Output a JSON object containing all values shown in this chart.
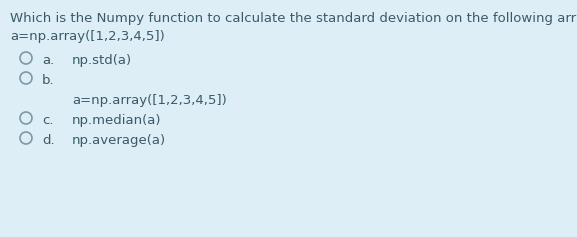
{
  "background_color": "#ddeef6",
  "title_line": "Which is the Numpy function to calculate the standard deviation on the following array:",
  "subtitle_line": "a=np.array([1,2,3,4,5])",
  "options": [
    {
      "label": "a.",
      "text": "np.std(a)",
      "subtext": null
    },
    {
      "label": "b.",
      "text": "",
      "subtext": "a=np.array([1,2,3,4,5])"
    },
    {
      "label": "c.",
      "text": "np.median(a)",
      "subtext": null
    },
    {
      "label": "d.",
      "text": "np.average(a)",
      "subtext": null
    }
  ],
  "text_color": "#3a5a6a",
  "circle_color": "#7a9aaa",
  "font_size": 9.5,
  "figsize": [
    5.77,
    2.37
  ],
  "dpi": 100
}
